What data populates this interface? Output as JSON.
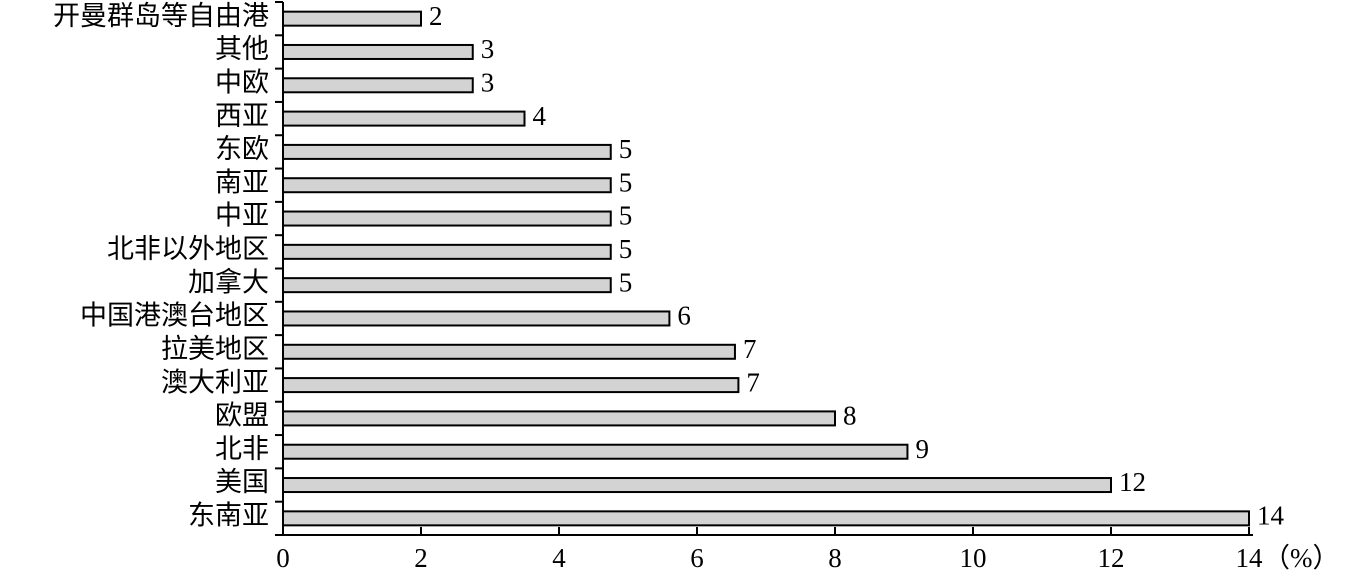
{
  "chart_data": {
    "type": "bar",
    "orientation": "horizontal",
    "categories": [
      "开曼群岛等自由港",
      "其他",
      "中欧",
      "西亚",
      "东欧",
      "南亚",
      "中亚",
      "北非以外地区",
      "加拿大",
      "中国港澳台地区",
      "拉美地区",
      "澳大利亚",
      "欧盟",
      "北非",
      "美国",
      "东南亚"
    ],
    "values": [
      2,
      2.75,
      2.75,
      3.5,
      4.75,
      4.75,
      4.75,
      4.75,
      4.75,
      5.6,
      6.55,
      6.6,
      8,
      9.05,
      12,
      14
    ],
    "value_labels": [
      "2",
      "3",
      "3",
      "4",
      "5",
      "5",
      "5",
      "5",
      "5",
      "6",
      "7",
      "7",
      "8",
      "9",
      "12",
      "14"
    ],
    "color": "#d3d3d3",
    "xlim": [
      0,
      14
    ],
    "xticks": [
      0,
      2,
      4,
      6,
      8,
      10,
      12,
      14
    ],
    "x_label": "（%）"
  }
}
